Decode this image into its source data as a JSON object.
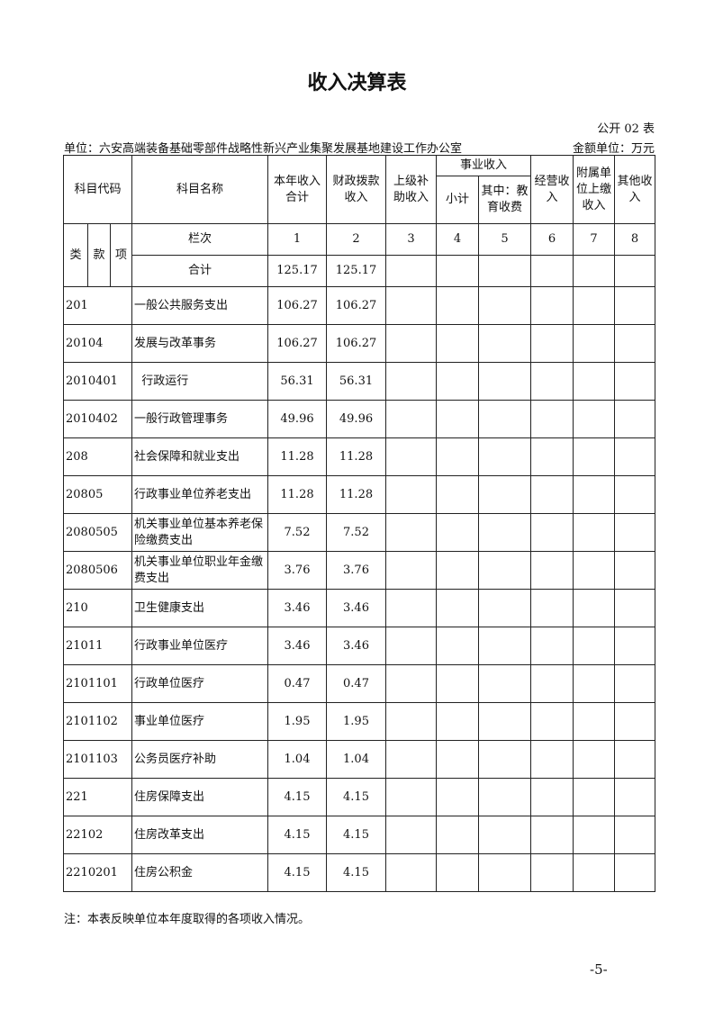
{
  "title": "收入决算表",
  "table_no": "公开 02 表",
  "unit": "单位：六安高端装备基础零部件战略性新兴产业集聚发展基地建设工作办公室",
  "money_unit": "金额单位：万元",
  "headers": {
    "code": "科目代码",
    "name": "科目名称",
    "c1": "本年收入合计",
    "c2": "财政拨款收入",
    "c3": "上级补助收入",
    "shiye": "事业收入",
    "c4": "小计",
    "c5": "其中：教育收费",
    "c6": "经营收入",
    "c7": "附属单位上缴收入",
    "c8": "其他收入",
    "lei": "类",
    "kuan": "款",
    "xiang": "项",
    "lanci": "栏次",
    "nums": [
      "1",
      "2",
      "3",
      "4",
      "5",
      "6",
      "7",
      "8"
    ]
  },
  "total": {
    "label": "合计",
    "c1": "125.17",
    "c2": "125.17"
  },
  "rows": [
    {
      "code": "201",
      "name": "一般公共服务支出",
      "c1": "106.27",
      "c2": "106.27"
    },
    {
      "code": "20104",
      "name": "发展与改革事务",
      "c1": "106.27",
      "c2": "106.27"
    },
    {
      "code": "2010401",
      "name": "  行政运行",
      "c1": "56.31",
      "c2": "56.31"
    },
    {
      "code": "2010402",
      "name": "一般行政管理事务",
      "c1": "49.96",
      "c2": "49.96"
    },
    {
      "code": "208",
      "name": "社会保障和就业支出",
      "c1": "11.28",
      "c2": "11.28"
    },
    {
      "code": "20805",
      "name": "行政事业单位养老支出",
      "c1": "11.28",
      "c2": "11.28"
    },
    {
      "code": "2080505",
      "name": "机关事业单位基本养老保险缴费支出",
      "c1": "7.52",
      "c2": "7.52"
    },
    {
      "code": "2080506",
      "name": "机关事业单位职业年金缴费支出",
      "c1": "3.76",
      "c2": "3.76"
    },
    {
      "code": "210",
      "name": "卫生健康支出",
      "c1": "3.46",
      "c2": "3.46"
    },
    {
      "code": "21011",
      "name": "行政事业单位医疗",
      "c1": "3.46",
      "c2": "3.46"
    },
    {
      "code": "2101101",
      "name": "行政单位医疗",
      "c1": "0.47",
      "c2": "0.47"
    },
    {
      "code": "2101102",
      "name": "事业单位医疗",
      "c1": "1.95",
      "c2": "1.95"
    },
    {
      "code": "2101103",
      "name": "公务员医疗补助",
      "c1": "1.04",
      "c2": "1.04"
    },
    {
      "code": "221",
      "name": "住房保障支出",
      "c1": "4.15",
      "c2": "4.15"
    },
    {
      "code": "22102",
      "name": "住房改革支出",
      "c1": "4.15",
      "c2": "4.15"
    },
    {
      "code": "2210201",
      "name": "住房公积金",
      "c1": "4.15",
      "c2": "4.15"
    }
  ],
  "note": "注：本表反映单位本年度取得的各项收入情况。",
  "page_number": "-5-"
}
